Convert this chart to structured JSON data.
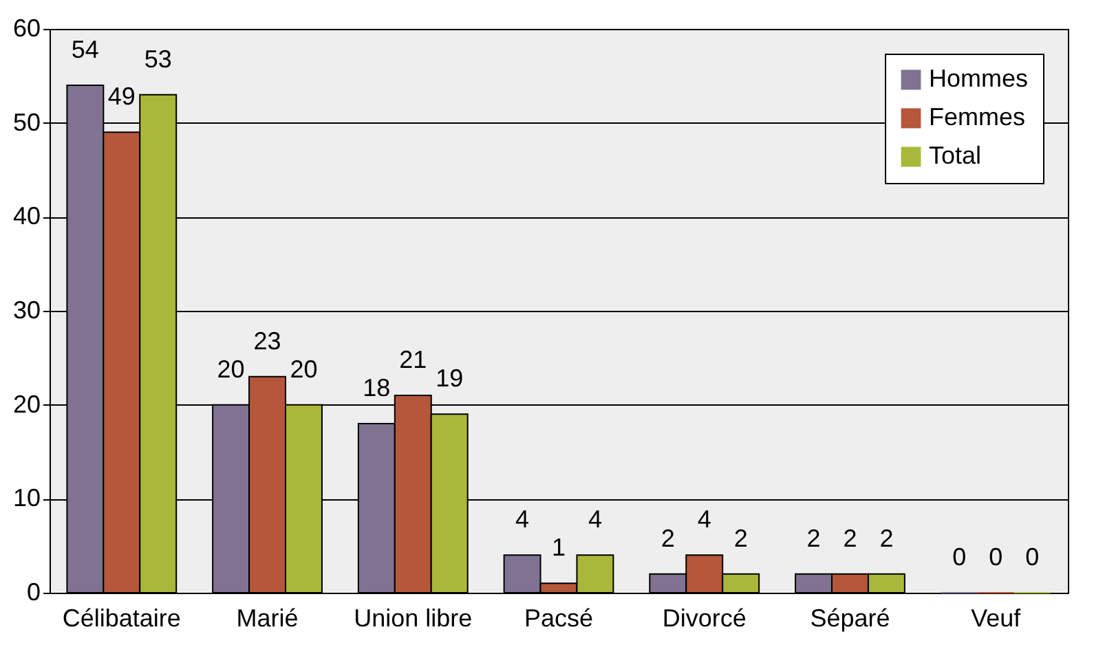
{
  "chart_data": {
    "type": "bar",
    "categories": [
      "Célibataire",
      "Marié",
      "Union libre",
      "Pacsé",
      "Divorcé",
      "Séparé",
      "Veuf"
    ],
    "series": [
      {
        "name": "Hommes",
        "color": "#7f7391",
        "values": [
          54,
          20,
          18,
          4,
          2,
          2,
          0
        ]
      },
      {
        "name": "Femmes",
        "color": "#b5573a",
        "values": [
          49,
          23,
          21,
          1,
          4,
          2,
          0
        ]
      },
      {
        "name": "Total",
        "color": "#a9b83a",
        "values": [
          53,
          20,
          19,
          4,
          2,
          2,
          0
        ]
      }
    ],
    "ylim": [
      0,
      60
    ],
    "yticks": [
      0,
      10,
      20,
      30,
      40,
      50,
      60
    ],
    "grid": "y",
    "legend": "top right",
    "data_labels": true
  }
}
